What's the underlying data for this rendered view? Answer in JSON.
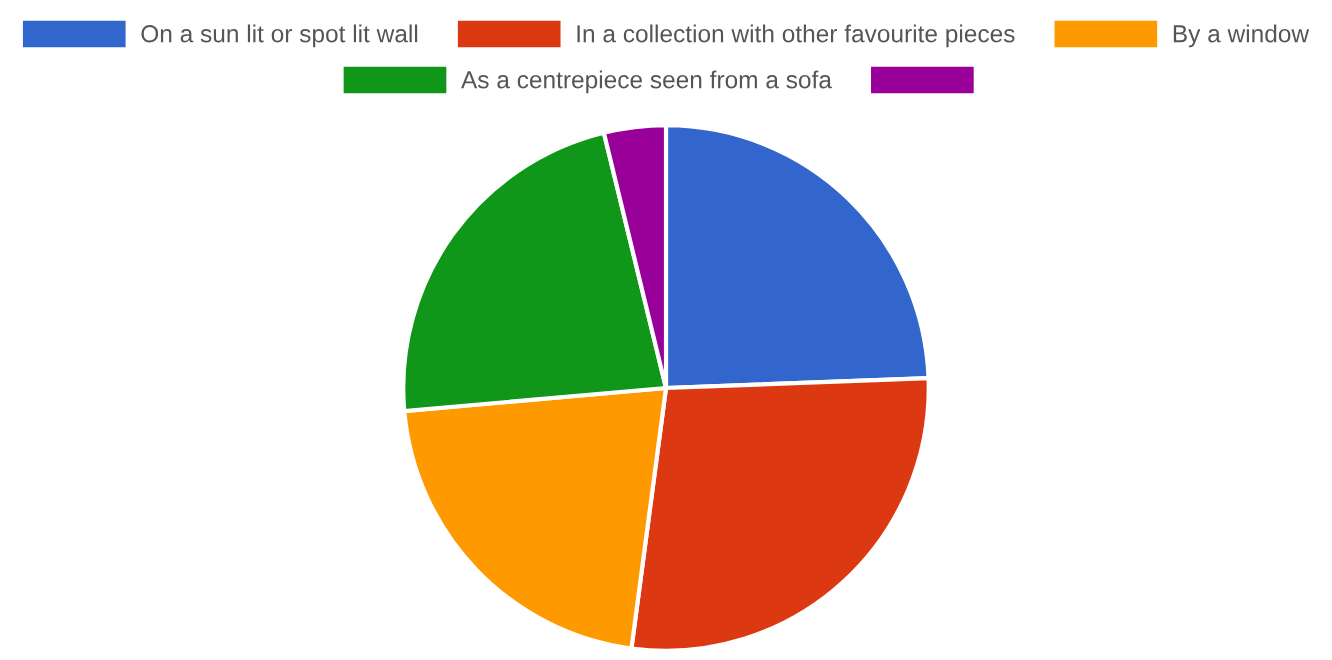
{
  "chart_data": {
    "type": "pie",
    "categories": [
      "On a sun lit or spot lit wall",
      "In a collection with other favourite pieces",
      "By a window",
      "As a centrepiece seen from a sofa",
      null
    ],
    "values": [
      24.4,
      27.7,
      21.5,
      22.6,
      3.8
    ],
    "colors": [
      "#3366cc",
      "#dc3912",
      "#ff9900",
      "#109618",
      "#990099"
    ],
    "legend": "top"
  }
}
